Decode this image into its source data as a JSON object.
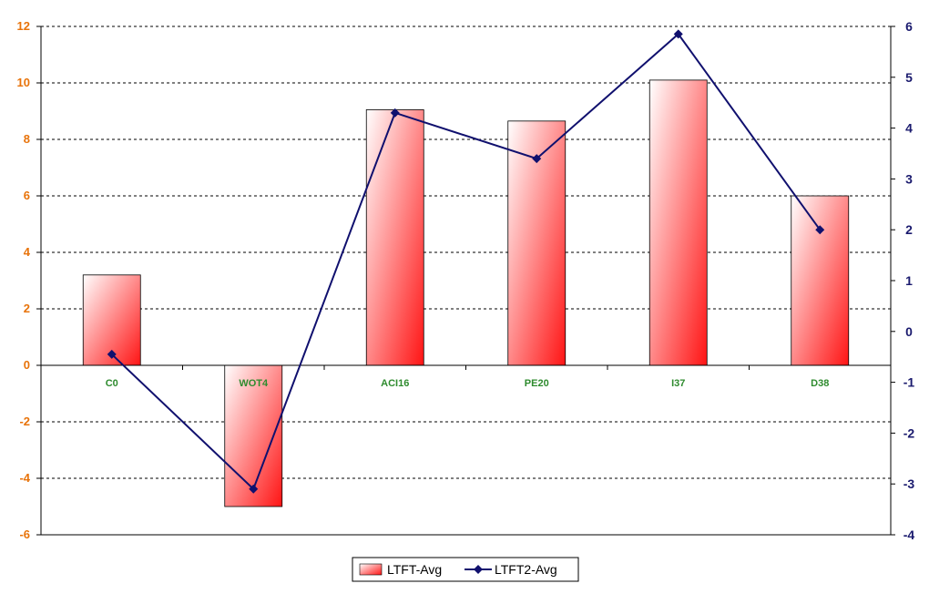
{
  "chart_data": {
    "type": "bar",
    "categories": [
      "C0",
      "WOT4",
      "ACI16",
      "PE20",
      "I37",
      "D38"
    ],
    "series": [
      {
        "name": "LTFT-Avg",
        "kind": "bar",
        "axis": "left",
        "values": [
          3.2,
          -5.0,
          9.05,
          8.65,
          10.1,
          6.0
        ]
      },
      {
        "name": "LTFT2-Avg",
        "kind": "line",
        "axis": "right",
        "values": [
          -0.45,
          -3.1,
          4.3,
          3.4,
          5.85,
          2.0
        ]
      }
    ],
    "y_left": {
      "ylim": [
        -6,
        12
      ],
      "ticks": [
        12,
        10,
        8,
        6,
        4,
        2,
        0,
        -2,
        -4,
        -6
      ]
    },
    "y_right": {
      "ylim": [
        -4,
        6
      ],
      "ticks": [
        6,
        5,
        4,
        3,
        2,
        1,
        0,
        -1,
        -2,
        -3,
        -4
      ]
    },
    "grid": true,
    "legend_position": "bottom-center",
    "title": "",
    "xlabel": "",
    "ylabel": ""
  },
  "colors": {
    "left_tick": "#e8730a",
    "right_tick": "#1a1a6e",
    "category_label": "#2e8b2e",
    "bar_light": "#ffffff",
    "bar_dark": "#ff1414",
    "line": "#10106e",
    "grid": "#000000"
  }
}
